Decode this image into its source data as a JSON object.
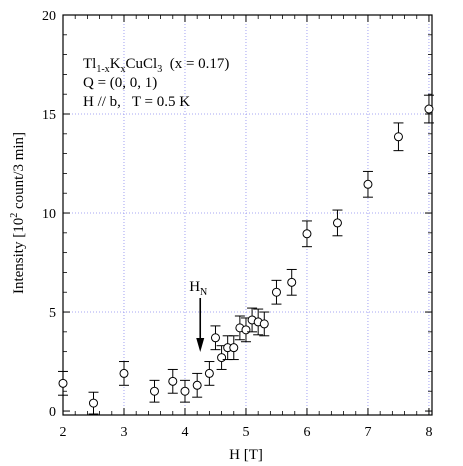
{
  "chart_data": {
    "type": "scatter",
    "xlabel": "H [T]",
    "ylabel": {
      "prefix": "Intensity [10",
      "sup": "2",
      "suffix": " count/3 min]"
    },
    "xlim": [
      2,
      8.05
    ],
    "ylim": [
      -0.2,
      20
    ],
    "xticks": [
      2,
      3,
      4,
      5,
      6,
      7,
      8
    ],
    "yticks": [
      0,
      5,
      10,
      15,
      20
    ],
    "grid": "dotted",
    "annotation_lines": {
      "line1": {
        "a": "Tl",
        "a_sub": "1-x",
        "b": "K",
        "b_sub": "x",
        "c": "CuCl",
        "c_sub": "3",
        "d": "  (x = 0.17)"
      },
      "line2": "Q = (0, 0, 1)",
      "line3": "H // b,   T = 0.5 K"
    },
    "marker": {
      "label_main": "H",
      "label_sub": "N",
      "x": 4.25
    },
    "points": [
      {
        "x": 2.0,
        "y": 1.4,
        "err": 0.6
      },
      {
        "x": 2.5,
        "y": 0.4,
        "err": 0.55
      },
      {
        "x": 3.0,
        "y": 1.9,
        "err": 0.6
      },
      {
        "x": 3.5,
        "y": 1.0,
        "err": 0.55
      },
      {
        "x": 3.8,
        "y": 1.5,
        "err": 0.6
      },
      {
        "x": 4.0,
        "y": 1.0,
        "err": 0.55
      },
      {
        "x": 4.2,
        "y": 1.3,
        "err": 0.6
      },
      {
        "x": 4.4,
        "y": 1.9,
        "err": 0.6
      },
      {
        "x": 4.5,
        "y": 3.7,
        "err": 0.6
      },
      {
        "x": 4.6,
        "y": 2.7,
        "err": 0.6
      },
      {
        "x": 4.7,
        "y": 3.2,
        "err": 0.6
      },
      {
        "x": 4.8,
        "y": 3.2,
        "err": 0.6
      },
      {
        "x": 4.9,
        "y": 4.2,
        "err": 0.6
      },
      {
        "x": 5.0,
        "y": 4.1,
        "err": 0.6
      },
      {
        "x": 5.1,
        "y": 4.6,
        "err": 0.6
      },
      {
        "x": 5.2,
        "y": 4.5,
        "err": 0.65
      },
      {
        "x": 5.3,
        "y": 4.4,
        "err": 0.6
      },
      {
        "x": 5.5,
        "y": 6.0,
        "err": 0.6
      },
      {
        "x": 5.75,
        "y": 6.5,
        "err": 0.65
      },
      {
        "x": 6.0,
        "y": 8.95,
        "err": 0.65
      },
      {
        "x": 6.5,
        "y": 9.5,
        "err": 0.65
      },
      {
        "x": 7.0,
        "y": 11.45,
        "err": 0.65
      },
      {
        "x": 7.5,
        "y": 13.85,
        "err": 0.7
      },
      {
        "x": 8.0,
        "y": 15.25,
        "err": 0.7
      }
    ]
  }
}
